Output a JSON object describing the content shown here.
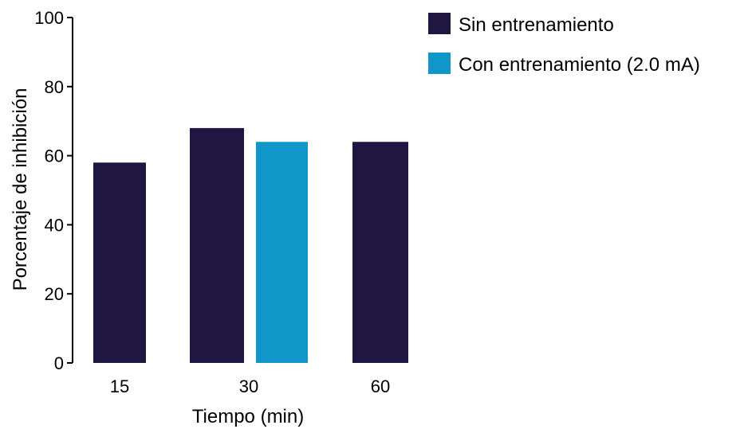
{
  "chart_data": {
    "type": "bar",
    "xlabel": "Tiempo (min)",
    "ylabel": "Porcentaje de inhibición",
    "ylim": [
      0,
      100
    ],
    "yticks": [
      "0",
      "20",
      "40",
      "60",
      "80",
      "100"
    ],
    "groups": [
      {
        "label": "15",
        "bars": [
          {
            "series": "Sin entrenamiento",
            "value": 58
          }
        ]
      },
      {
        "label": "30",
        "bars": [
          {
            "series": "Sin entrenamiento",
            "value": 68
          },
          {
            "series": "Con entrenamiento (2.0 mA)",
            "value": 64
          }
        ]
      },
      {
        "label": "60",
        "bars": [
          {
            "series": "Sin entrenamiento",
            "value": 64
          }
        ]
      }
    ],
    "legend": [
      {
        "name": "Sin entrenamiento",
        "color": "#1f1641"
      },
      {
        "name": "Con entrenamiento (2.0 mA)",
        "color": "#1196c9"
      }
    ],
    "grid": false,
    "legend_position": "top-right"
  }
}
